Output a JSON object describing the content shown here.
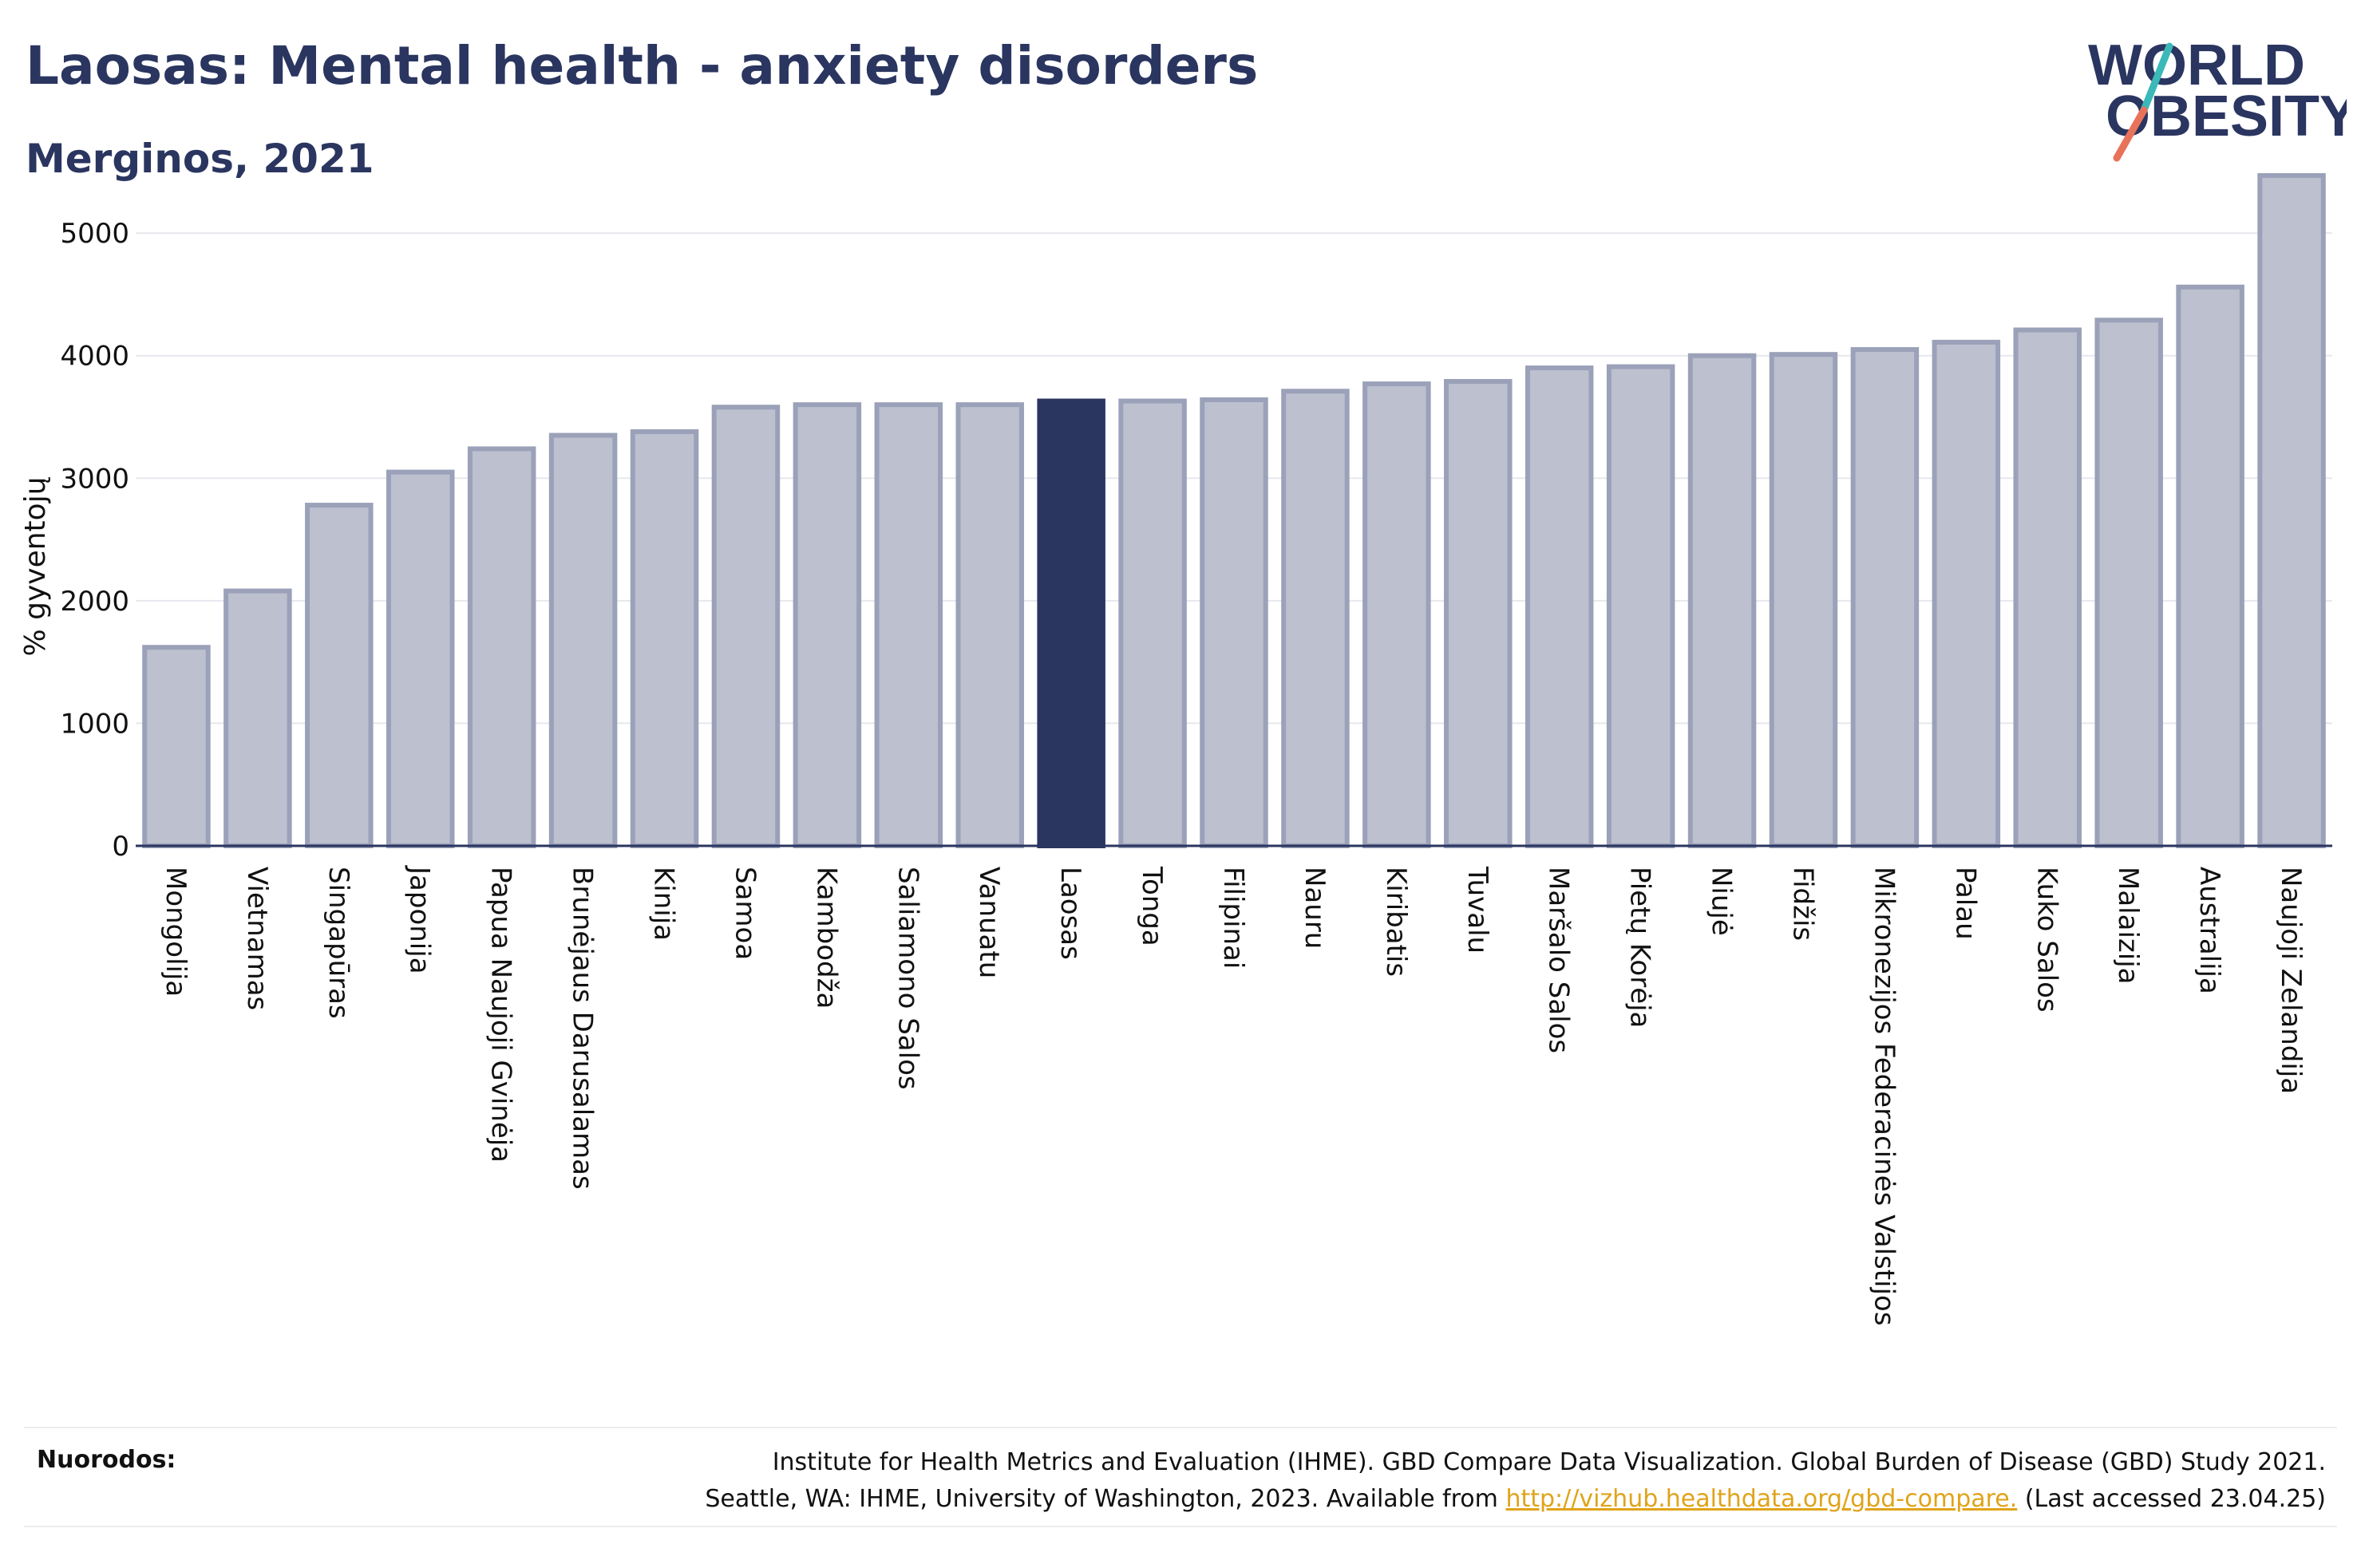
{
  "header": {
    "title": "Laosas: Mental health - anxiety disorders",
    "subtitle": "Merginos, 2021"
  },
  "logo": {
    "line1": "WORLD",
    "line2": "OBESITY"
  },
  "colors": {
    "bar": "#bcc0cf",
    "bar_edge": "#9ba1b8",
    "highlight": "#2a3560",
    "text": "#2a3560",
    "link": "#e0a31a",
    "logo_teal": "#3bb8b8",
    "logo_coral": "#e8735a"
  },
  "chart_data": {
    "type": "bar",
    "ylabel": "% gyventojų",
    "ylim": [
      0,
      5600
    ],
    "yticks": [
      0,
      1000,
      2000,
      3000,
      4000,
      5000
    ],
    "grid": true,
    "highlight": "Laosas",
    "categories": [
      "Mongolija",
      "Vietnamas",
      "Singapūras",
      "Japonija",
      "Papua Naujoji Gvinėja",
      "Brunėjaus Darusalamas",
      "Kinija",
      "Samoa",
      "Kambodža",
      "Saliamono Salos",
      "Vanuatu",
      "Laosas",
      "Tonga",
      "Filipinai",
      "Nauru",
      "Kiribatis",
      "Tuvalu",
      "Maršalo Salos",
      "Pietų Korėja",
      "Niujė",
      "Fidžis",
      "Mikronezijos Federacinės Valstijos",
      "Palau",
      "Kuko Salos",
      "Malaizija",
      "Australija",
      "Naujoji Zelandija"
    ],
    "values": [
      1620,
      2080,
      2780,
      3050,
      3240,
      3350,
      3380,
      3580,
      3600,
      3600,
      3600,
      3630,
      3630,
      3640,
      3710,
      3770,
      3790,
      3900,
      3910,
      4000,
      4010,
      4050,
      4110,
      4210,
      4290,
      4560,
      5470
    ]
  },
  "footer": {
    "label": "Nuorodos:",
    "line1": "Institute for Health Metrics and Evaluation (IHME). GBD Compare Data Visualization. Global Burden of Disease (GBD) Study 2021.",
    "line2_prefix": "Seattle, WA: IHME, University of Washington, 2023. Available from",
    "link": "http://vizhub.healthdata.org/gbd-compare.",
    "line2_suffix": "(Last accessed 23.04.25)"
  }
}
